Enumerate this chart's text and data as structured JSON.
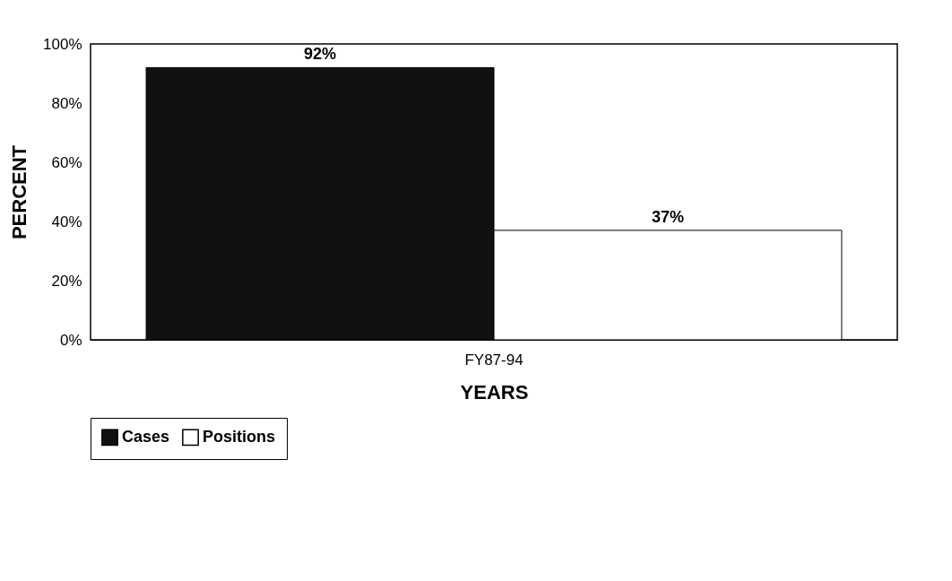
{
  "chart_data": {
    "type": "bar",
    "xlabel": "YEARS",
    "ylabel": "PERCENT",
    "categories": [
      "FY87-94"
    ],
    "series": [
      {
        "name": "Cases",
        "color": "#111111",
        "values": [
          92
        ],
        "value_labels": [
          "92%"
        ]
      },
      {
        "name": "Positions",
        "color": "#ffffff",
        "values": [
          37
        ],
        "value_labels": [
          "37%"
        ]
      }
    ],
    "ylim": [
      0,
      100
    ],
    "yticks": [
      {
        "value": 0,
        "label": "0%"
      },
      {
        "value": 20,
        "label": "20%"
      },
      {
        "value": 40,
        "label": "40%"
      },
      {
        "value": 60,
        "label": "60%"
      },
      {
        "value": 80,
        "label": "80%"
      },
      {
        "value": 100,
        "label": "100%"
      }
    ],
    "grid": false,
    "legend": "bottom"
  }
}
